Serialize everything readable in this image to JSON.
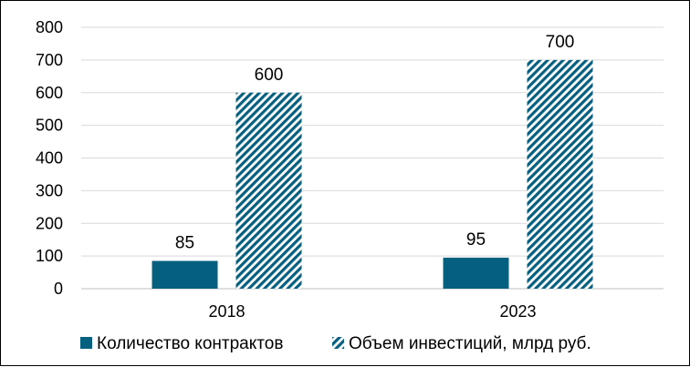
{
  "chart_data": {
    "type": "bar",
    "categories": [
      "2018",
      "2023"
    ],
    "series": [
      {
        "name": "Количество контрактов",
        "values": [
          85,
          95
        ],
        "color": "#05607f",
        "pattern": "solid"
      },
      {
        "name": "Объем инвестиций, млрд руб.",
        "values": [
          600,
          700
        ],
        "color": "#05607f",
        "pattern": "diagonal-hatch"
      }
    ],
    "ylim": [
      0,
      800
    ],
    "yticks": [
      "0",
      "100",
      "200",
      "300",
      "400",
      "500",
      "600",
      "700",
      "800"
    ],
    "grid": true,
    "legend_position": "bottom",
    "title": "",
    "xlabel": "",
    "ylabel": ""
  }
}
